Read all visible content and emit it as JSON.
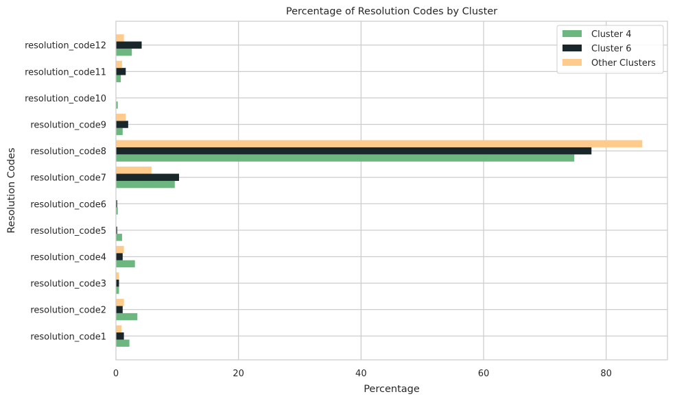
{
  "chart_data": {
    "type": "bar",
    "orientation": "horizontal",
    "title": "Percentage of Resolution Codes by Cluster",
    "xlabel": "Percentage",
    "ylabel": "Resolution Codes",
    "xlim": [
      0,
      90
    ],
    "xticks": [
      0,
      20,
      40,
      60,
      80
    ],
    "grid": true,
    "legend_position": "top-right",
    "categories": [
      "resolution_code1",
      "resolution_code2",
      "resolution_code3",
      "resolution_code4",
      "resolution_code5",
      "resolution_code6",
      "resolution_code7",
      "resolution_code8",
      "resolution_code9",
      "resolution_code10",
      "resolution_code11",
      "resolution_code12"
    ],
    "series": [
      {
        "name": "Cluster 4",
        "color": "#6bb77f",
        "values": [
          2.2,
          3.5,
          0.5,
          3.1,
          1.0,
          0.3,
          9.6,
          74.8,
          1.1,
          0.3,
          0.8,
          2.6
        ]
      },
      {
        "name": "Cluster 6",
        "color": "#19262a",
        "values": [
          1.3,
          1.1,
          0.5,
          1.1,
          0.2,
          0.2,
          10.3,
          77.6,
          2.0,
          0.0,
          1.6,
          4.2
        ]
      },
      {
        "name": "Other Clusters",
        "color": "#fecb8c",
        "values": [
          0.9,
          1.3,
          0.5,
          1.3,
          0.0,
          0.0,
          5.8,
          85.9,
          1.6,
          0.0,
          1.0,
          1.3
        ]
      }
    ]
  }
}
